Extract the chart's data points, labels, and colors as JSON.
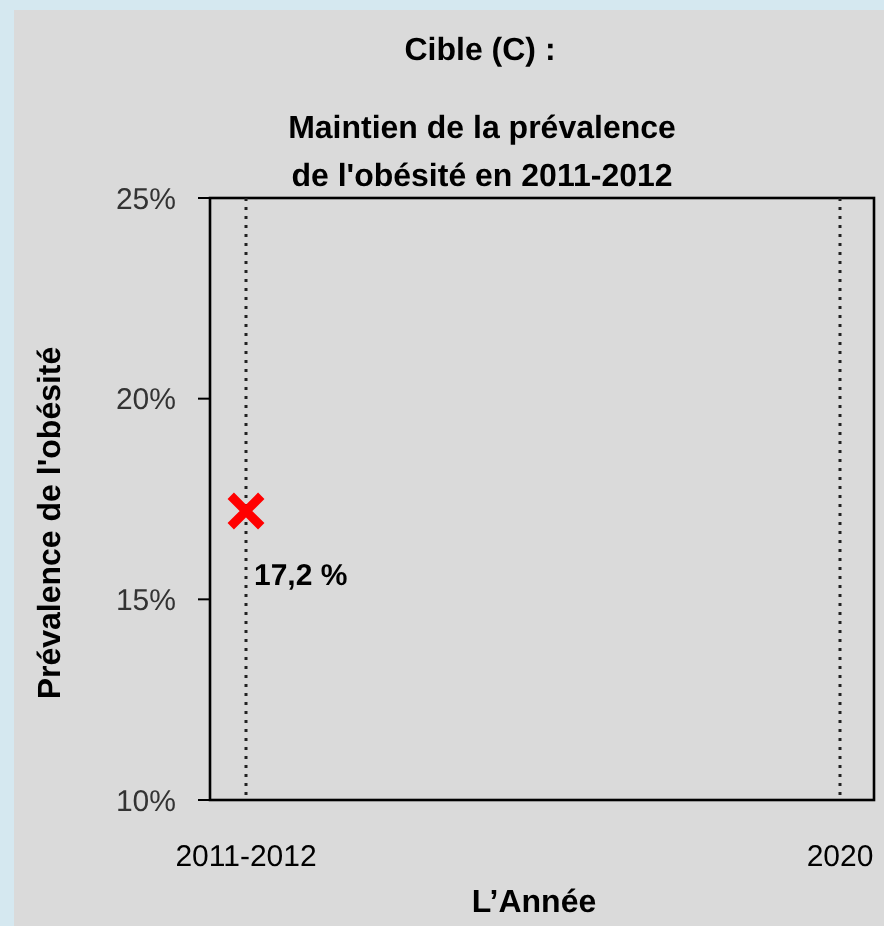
{
  "chart_data": {
    "type": "scatter",
    "title": "Cible (C) :",
    "subtitle": "Maintien de la prévalence\nde l'obésité en 2011-2012",
    "xlabel": "L’Année",
    "ylabel": "Prévalence de l'obésité",
    "categories": [
      "2011-2012",
      "2020"
    ],
    "series": [
      {
        "color": "#ff0000",
        "values": [
          17.2,
          null
        ],
        "value_labels": [
          "17,2 %",
          null
        ]
      }
    ],
    "ylim": [
      10,
      25
    ],
    "yticks": [
      {
        "value": 10,
        "label": "10%"
      },
      {
        "value": 15,
        "label": "15%"
      },
      {
        "value": 20,
        "label": "20%"
      },
      {
        "value": 25,
        "label": "25%"
      }
    ],
    "grid": "x",
    "line_style": "dotted",
    "marker": "cross"
  }
}
